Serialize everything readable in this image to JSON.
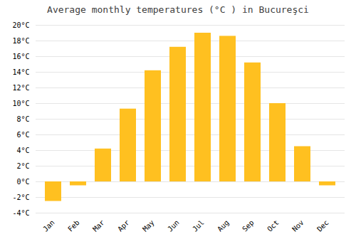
{
  "chart_data": {
    "type": "bar",
    "title": "Average monthly temperatures (°C ) in Bucureşci",
    "categories": [
      "Jan",
      "Feb",
      "Mar",
      "Apr",
      "May",
      "Jun",
      "Jul",
      "Aug",
      "Sep",
      "Oct",
      "Nov",
      "Dec"
    ],
    "values": [
      -2.5,
      -0.5,
      4.2,
      9.3,
      14.2,
      17.2,
      19.0,
      18.6,
      15.2,
      10.0,
      4.5,
      -0.5
    ],
    "color": "#FFC020",
    "ylim": [
      -4,
      20
    ],
    "yticks": [
      {
        "value": -4,
        "label": "-4°C"
      },
      {
        "value": -2,
        "label": "-2°C"
      },
      {
        "value": 0,
        "label": "0°C"
      },
      {
        "value": 2,
        "label": "2°C"
      },
      {
        "value": 4,
        "label": "4°C"
      },
      {
        "value": 6,
        "label": "6°C"
      },
      {
        "value": 8,
        "label": "8°C"
      },
      {
        "value": 10,
        "label": "10°C"
      },
      {
        "value": 12,
        "label": "12°C"
      },
      {
        "value": 14,
        "label": "14°C"
      },
      {
        "value": 16,
        "label": "16°C"
      },
      {
        "value": 18,
        "label": "18°C"
      },
      {
        "value": 20,
        "label": "20°C"
      }
    ],
    "grid": true
  }
}
